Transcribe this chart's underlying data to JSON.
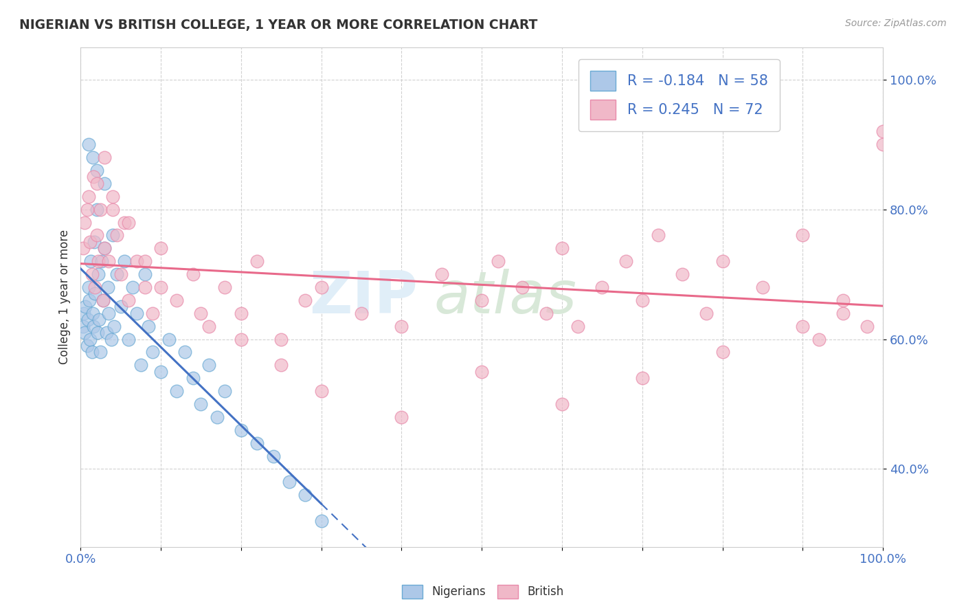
{
  "title": "NIGERIAN VS BRITISH COLLEGE, 1 YEAR OR MORE CORRELATION CHART",
  "source_text": "Source: ZipAtlas.com",
  "ylabel": "College, 1 year or more",
  "legend_label1": "Nigerians",
  "legend_label2": "British",
  "R1": -0.184,
  "N1": 58,
  "R2": 0.245,
  "N2": 72,
  "color_nigerian_fill": "#adc8e8",
  "color_nigerian_edge": "#6aaad4",
  "color_british_fill": "#f0b8c8",
  "color_british_edge": "#e88aaa",
  "color_line_blue": "#4472c4",
  "color_line_pink": "#e8698a",
  "watermark_color": "#e0eef8",
  "ytick_labels": [
    "40.0%",
    "60.0%",
    "80.0%",
    "100.0%"
  ],
  "ytick_vals": [
    0.4,
    0.6,
    0.8,
    1.0
  ],
  "xmin": 0.0,
  "xmax": 100.0,
  "ymin": 0.28,
  "ymax": 1.05,
  "nigerian_x": [
    0.3,
    0.4,
    0.5,
    0.6,
    0.8,
    0.9,
    1.0,
    1.1,
    1.2,
    1.3,
    1.4,
    1.5,
    1.6,
    1.7,
    1.8,
    2.0,
    2.1,
    2.2,
    2.3,
    2.5,
    2.6,
    2.8,
    3.0,
    3.2,
    3.4,
    3.5,
    3.8,
    4.0,
    4.2,
    4.5,
    5.0,
    5.5,
    6.0,
    6.5,
    7.0,
    7.5,
    8.0,
    8.5,
    9.0,
    10.0,
    11.0,
    12.0,
    13.0,
    14.0,
    15.0,
    16.0,
    17.0,
    18.0,
    20.0,
    22.0,
    24.0,
    26.0,
    28.0,
    30.0,
    1.0,
    1.5,
    2.0,
    3.0
  ],
  "nigerian_y": [
    0.62,
    0.64,
    0.61,
    0.65,
    0.59,
    0.63,
    0.68,
    0.66,
    0.6,
    0.72,
    0.58,
    0.64,
    0.62,
    0.75,
    0.67,
    0.8,
    0.61,
    0.7,
    0.63,
    0.58,
    0.72,
    0.66,
    0.74,
    0.61,
    0.68,
    0.64,
    0.6,
    0.76,
    0.62,
    0.7,
    0.65,
    0.72,
    0.6,
    0.68,
    0.64,
    0.56,
    0.7,
    0.62,
    0.58,
    0.55,
    0.6,
    0.52,
    0.58,
    0.54,
    0.5,
    0.56,
    0.48,
    0.52,
    0.46,
    0.44,
    0.42,
    0.38,
    0.36,
    0.32,
    0.9,
    0.88,
    0.86,
    0.84
  ],
  "british_x": [
    0.3,
    0.5,
    0.8,
    1.0,
    1.2,
    1.4,
    1.6,
    1.8,
    2.0,
    2.2,
    2.5,
    2.8,
    3.0,
    3.5,
    4.0,
    4.5,
    5.0,
    5.5,
    6.0,
    7.0,
    8.0,
    9.0,
    10.0,
    12.0,
    14.0,
    16.0,
    18.0,
    20.0,
    22.0,
    25.0,
    28.0,
    30.0,
    35.0,
    40.0,
    45.0,
    50.0,
    52.0,
    55.0,
    58.0,
    60.0,
    62.0,
    65.0,
    68.0,
    70.0,
    72.0,
    75.0,
    78.0,
    80.0,
    85.0,
    90.0,
    92.0,
    95.0,
    98.0,
    100.0,
    2.0,
    3.0,
    4.0,
    6.0,
    8.0,
    10.0,
    15.0,
    20.0,
    25.0,
    30.0,
    40.0,
    50.0,
    60.0,
    70.0,
    80.0,
    90.0,
    95.0,
    100.0
  ],
  "british_y": [
    0.74,
    0.78,
    0.8,
    0.82,
    0.75,
    0.7,
    0.85,
    0.68,
    0.76,
    0.72,
    0.8,
    0.66,
    0.74,
    0.72,
    0.82,
    0.76,
    0.7,
    0.78,
    0.66,
    0.72,
    0.68,
    0.64,
    0.74,
    0.66,
    0.7,
    0.62,
    0.68,
    0.64,
    0.72,
    0.6,
    0.66,
    0.68,
    0.64,
    0.62,
    0.7,
    0.66,
    0.72,
    0.68,
    0.64,
    0.74,
    0.62,
    0.68,
    0.72,
    0.66,
    0.76,
    0.7,
    0.64,
    0.72,
    0.68,
    0.76,
    0.6,
    0.64,
    0.62,
    0.92,
    0.84,
    0.88,
    0.8,
    0.78,
    0.72,
    0.68,
    0.64,
    0.6,
    0.56,
    0.52,
    0.48,
    0.55,
    0.5,
    0.54,
    0.58,
    0.62,
    0.66,
    0.9
  ]
}
